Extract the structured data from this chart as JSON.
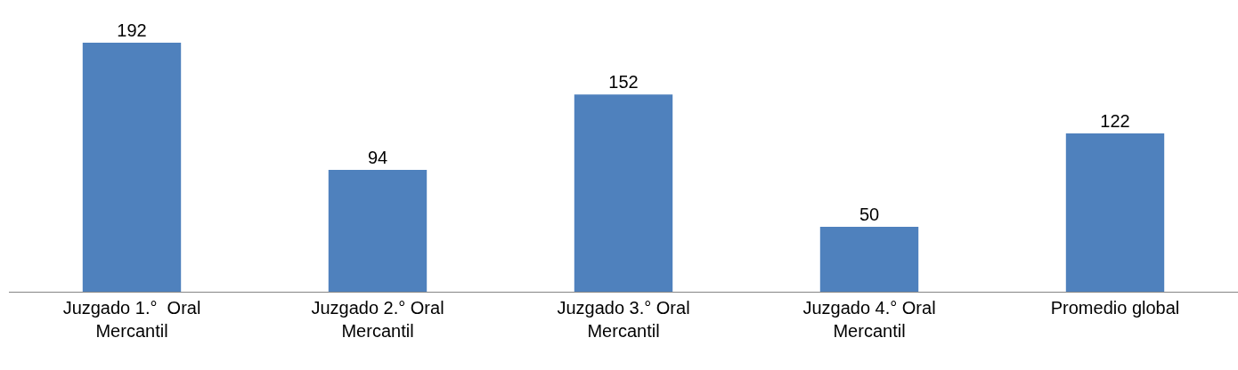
{
  "chart_data": {
    "type": "bar",
    "categories": [
      "Juzgado 1.°  Oral\nMercantil",
      "Juzgado 2.° Oral\nMercantil",
      "Juzgado 3.° Oral\nMercantil",
      "Juzgado 4.° Oral\nMercantil",
      "Promedio global"
    ],
    "values": [
      192,
      94,
      152,
      50,
      122
    ],
    "color": "#4f81bd",
    "data_labels": true,
    "legend": false
  }
}
